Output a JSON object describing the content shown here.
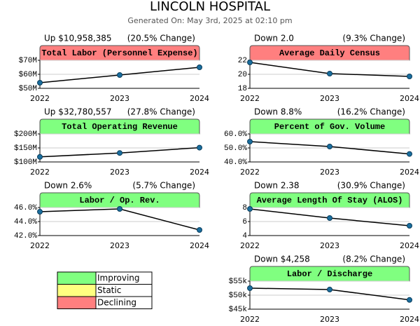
{
  "header": {
    "title": "LINCOLN HOSPITAL",
    "subtitle": "Generated On: May 3rd, 2025 at 02:10 pm"
  },
  "chart_data": [
    {
      "type": "line",
      "title": "Total Labor (Personnel Expense)",
      "change": "Up $10,958,385",
      "change_pct": "(20.5% Change)",
      "title_color": "#ff7f7f",
      "color": "#000000",
      "marker_color": "#1a6e9e",
      "grid": true,
      "categories": [
        "2022",
        "2023",
        "2024"
      ],
      "values": [
        54,
        59.5,
        65
      ],
      "ylim": [
        50,
        70
      ],
      "yticks": [
        {
          "value": 50,
          "label": "$50M"
        },
        {
          "value": 60,
          "label": "$60M"
        },
        {
          "value": 70,
          "label": "$70M"
        }
      ]
    },
    {
      "type": "line",
      "title": "Average Daily Census",
      "change": "Down 2.0",
      "change_pct": "(9.3% Change)",
      "title_color": "#ff7f7f",
      "color": "#000000",
      "marker_color": "#1a6e9e",
      "grid": true,
      "categories": [
        "2022",
        "2023",
        "2024"
      ],
      "values": [
        21.7,
        20.1,
        19.7
      ],
      "ylim": [
        18,
        22
      ],
      "yticks": [
        18,
        20,
        22
      ]
    },
    {
      "type": "line",
      "title": "Total Operating Revenue",
      "change": "Up $32,780,557",
      "change_pct": "(27.8% Change)",
      "title_color": "#80ff80",
      "color": "#000000",
      "marker_color": "#1a6e9e",
      "grid": true,
      "categories": [
        "2022",
        "2023",
        "2024"
      ],
      "values": [
        118,
        132,
        151
      ],
      "ylim": [
        100,
        200
      ],
      "yticks": [
        {
          "value": 100,
          "label": "$100M"
        },
        {
          "value": 150,
          "label": "$150M"
        },
        {
          "value": 200,
          "label": "$200M"
        }
      ]
    },
    {
      "type": "line",
      "title": "Percent of Gov. Volume",
      "change": "Down 8.8%",
      "change_pct": "(16.2% Change)",
      "title_color": "#80ff80",
      "color": "#000000",
      "marker_color": "#1a6e9e",
      "grid": true,
      "categories": [
        "2022",
        "2023",
        "2024"
      ],
      "values": [
        54.5,
        51,
        45.7
      ],
      "ylim": [
        40,
        60
      ],
      "yticks": [
        {
          "value": 40,
          "label": "40.0%"
        },
        {
          "value": 50,
          "label": "50.0%"
        },
        {
          "value": 60,
          "label": "60.0%"
        }
      ]
    },
    {
      "type": "line",
      "title": "Labor / Op. Rev.",
      "change": "Down 2.6%",
      "change_pct": "(5.7% Change)",
      "title_color": "#80ff80",
      "color": "#000000",
      "marker_color": "#1a6e9e",
      "grid": true,
      "categories": [
        "2022",
        "2023",
        "2024"
      ],
      "values": [
        45.4,
        45.8,
        42.8
      ],
      "ylim": [
        42,
        46
      ],
      "yticks": [
        {
          "value": 42,
          "label": "42.0%"
        },
        {
          "value": 44,
          "label": "44.0%"
        },
        {
          "value": 46,
          "label": "46.0%"
        }
      ]
    },
    {
      "type": "line",
      "title": "Average Length Of Stay (ALOS)",
      "change": "Down 2.38",
      "change_pct": "(30.9% Change)",
      "title_color": "#80ff80",
      "color": "#000000",
      "marker_color": "#1a6e9e",
      "grid": true,
      "categories": [
        "2022",
        "2023",
        "2024"
      ],
      "values": [
        7.8,
        6.5,
        5.4
      ],
      "ylim": [
        4,
        8
      ],
      "yticks": [
        4,
        6,
        8
      ]
    },
    {
      "type": "line",
      "title": "Labor / Discharge",
      "change": "Down $4,258",
      "change_pct": "(8.2% Change)",
      "title_color": "#80ff80",
      "color": "#000000",
      "marker_color": "#1a6e9e",
      "grid": true,
      "categories": [
        "2022",
        "2023",
        "2024"
      ],
      "values": [
        52.5,
        52,
        48.3
      ],
      "ylim": [
        45,
        55
      ],
      "yticks": [
        {
          "value": 45,
          "label": "$45k"
        },
        {
          "value": 50,
          "label": "$50k"
        },
        {
          "value": 55,
          "label": "$55k"
        }
      ]
    }
  ],
  "legend": [
    {
      "label": "Improving",
      "color": "#80ff80"
    },
    {
      "label": "Static",
      "color": "#ffff80"
    },
    {
      "label": "Declining",
      "color": "#ff7f7f"
    }
  ]
}
